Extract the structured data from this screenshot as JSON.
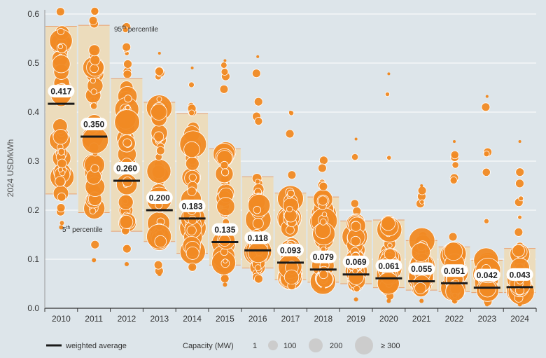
{
  "chart_data": {
    "type": "scatter",
    "ylabel": "2024 USD/kWh",
    "ylim": [
      0,
      0.6
    ],
    "yticks": [
      "0.0",
      "0.1",
      "0.2",
      "0.3",
      "0.4",
      "0.5",
      "0.6"
    ],
    "categories": [
      "2010",
      "2011",
      "2012",
      "2013",
      "2014",
      "2015",
      "2016",
      "2017",
      "2018",
      "2019",
      "2020",
      "2021",
      "2022",
      "2023",
      "2024"
    ],
    "weighted_average": [
      0.417,
      0.35,
      0.26,
      0.2,
      0.183,
      0.135,
      0.118,
      0.093,
      0.079,
      0.069,
      0.061,
      0.055,
      0.051,
      0.042,
      0.043
    ],
    "weighted_average_labels": [
      "0.417",
      "0.350",
      "0.260",
      "0.200",
      "0.183",
      "0.135",
      "0.118",
      "0.093",
      "0.079",
      "0.069",
      "0.061",
      "0.055",
      "0.051",
      "0.042",
      "0.043"
    ],
    "p95": [
      0.575,
      0.577,
      0.468,
      0.42,
      0.397,
      0.325,
      0.268,
      0.235,
      0.227,
      0.178,
      0.18,
      0.138,
      0.125,
      0.098,
      0.122
    ],
    "p5": [
      0.233,
      0.195,
      0.157,
      0.136,
      0.112,
      0.088,
      0.082,
      0.058,
      0.053,
      0.05,
      0.042,
      0.037,
      0.034,
      0.032,
      0.032
    ],
    "observed_min": [
      0.165,
      0.098,
      0.09,
      0.07,
      0.083,
      0.048,
      0.057,
      0.045,
      0.04,
      0.018,
      0.015,
      0.015,
      0.015,
      0.008,
      0.008
    ],
    "observed_max": [
      0.605,
      0.607,
      0.577,
      0.52,
      0.49,
      0.505,
      0.513,
      0.4,
      0.305,
      0.345,
      0.478,
      0.25,
      0.34,
      0.432,
      0.34
    ],
    "annotations": {
      "p95_label": "95",
      "p95_sup": "th",
      "p95_rest": " percentile",
      "p5_label": "5",
      "p5_sup": "th",
      "p5_rest": " percentile"
    },
    "legend": {
      "weighted_average": "weighted average",
      "capacity_title": "Capacity (MW)",
      "capacity_sizes": [
        "1",
        "100",
        "200",
        "≥ 300"
      ]
    },
    "colors": {
      "bubble": "#f08a24",
      "band": "#ecdcbc",
      "band_edge": "#e8a070",
      "average": "#1a1a1a",
      "background": "#dde5ea"
    }
  }
}
